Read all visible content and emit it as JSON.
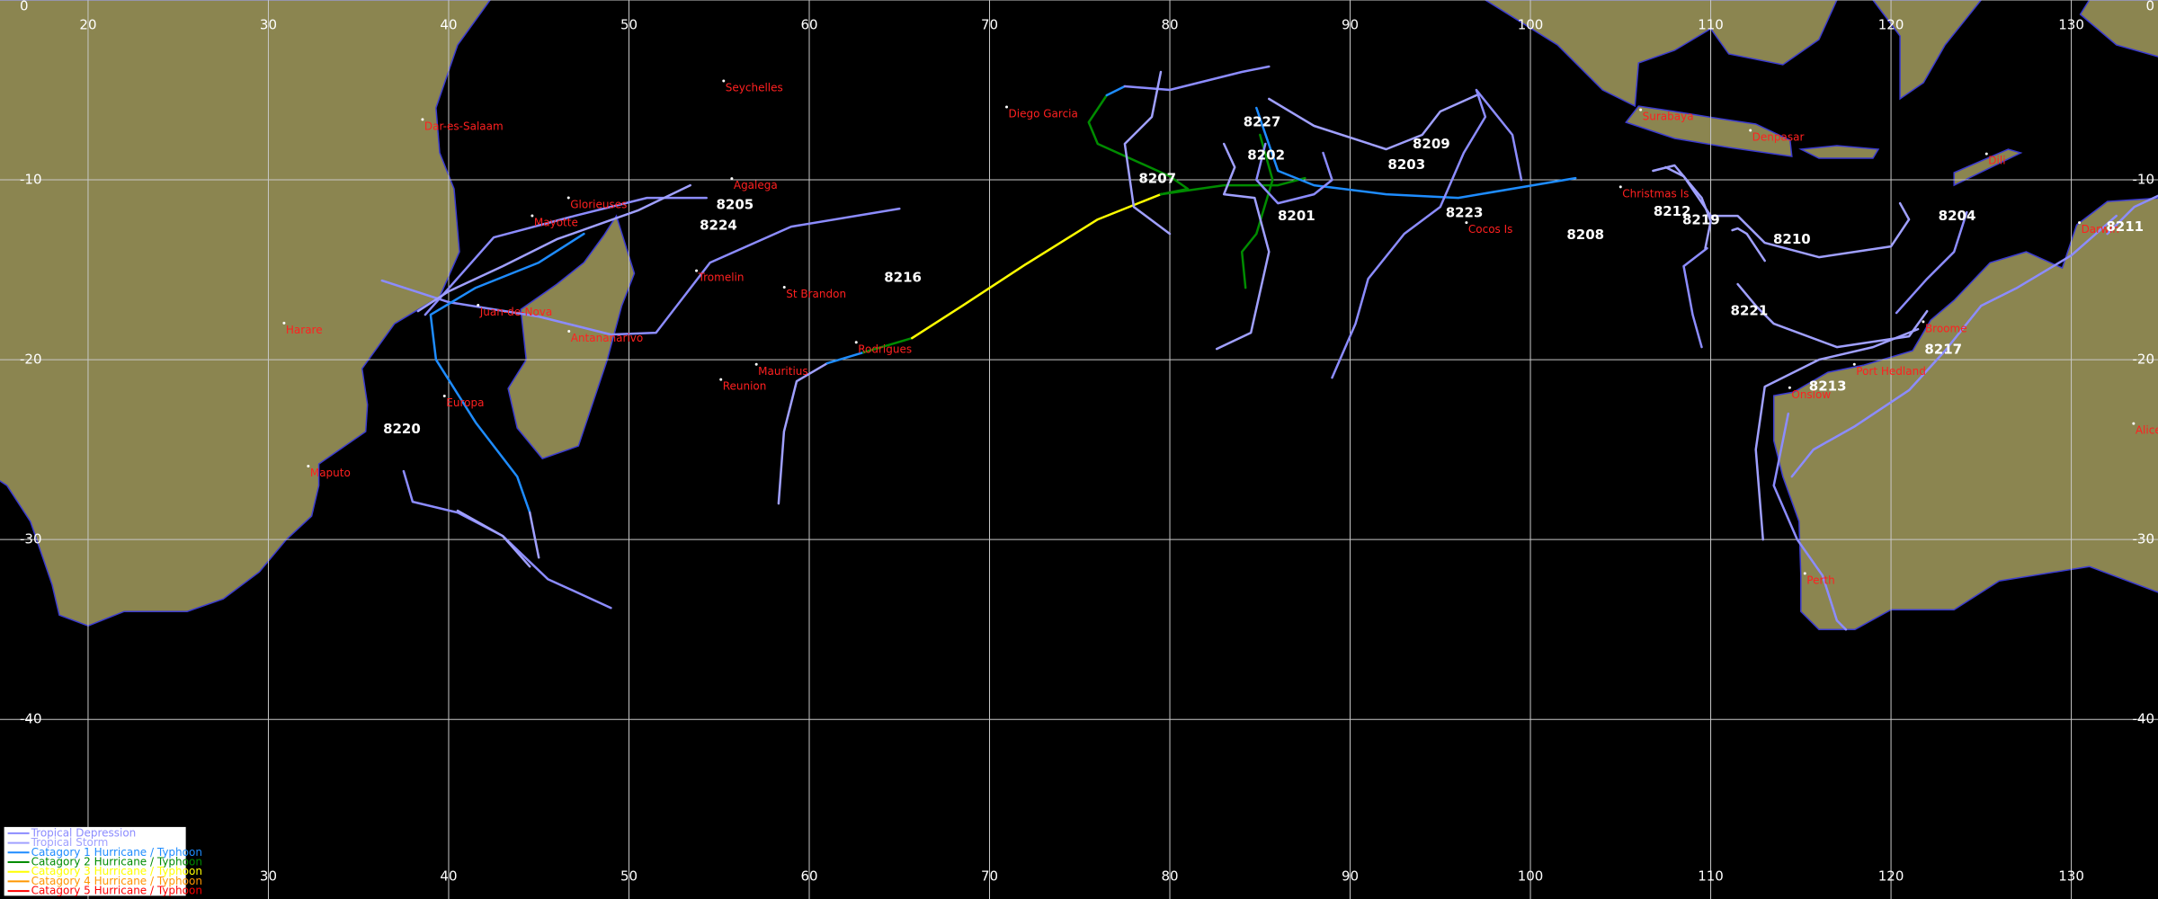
{
  "map": {
    "longitude_labels_top": [
      20,
      30,
      40,
      50,
      60,
      70,
      80,
      90,
      100,
      110,
      120,
      130
    ],
    "longitude_labels_bottom": [
      30,
      40,
      50,
      60,
      70,
      80,
      90,
      100,
      110,
      120,
      130
    ],
    "latitude_labels": [
      0,
      -10,
      -20,
      -30,
      -40
    ],
    "places": [
      "Dar-es-Salaam",
      "Seychelles",
      "Diego Garcia",
      "Agalega",
      "Glorieuses",
      "Mayotte",
      "Tromelin",
      "St Brandon",
      "Juan-de-Nova",
      "Antananarivo",
      "Harare",
      "Europa",
      "Maputo",
      "Mauritius",
      "Reunion",
      "Rodrigues",
      "Christmas Is",
      "Cocos Is",
      "Surabaya",
      "Denpasar",
      "Dili",
      "Darwin",
      "Broome",
      "Port Hedland",
      "Onslow",
      "Perth",
      "Alice"
    ],
    "storm_ids": [
      "8227",
      "8202",
      "8209",
      "8203",
      "8207",
      "8201",
      "8223",
      "8208",
      "8205",
      "8224",
      "8216",
      "8220",
      "8212",
      "8219",
      "8210",
      "8204",
      "8211",
      "8221",
      "8217",
      "8213"
    ],
    "legend": [
      {
        "label": "Tropical Depression",
        "color": "#8c8cff"
      },
      {
        "label": "Tropical Storm",
        "color": "#a0a0ff"
      },
      {
        "label": "Catagory 1 Hurricane / Typhoon",
        "color": "#1e8cff"
      },
      {
        "label": "Catagory 2 Hurricane / Typhoon",
        "color": "#008c00"
      },
      {
        "label": "Catagory 3 Hurricane / Typhoon",
        "color": "#ffff00"
      },
      {
        "label": "Catagory 4 Hurricane / Typhoon",
        "color": "#ff9600"
      },
      {
        "label": "Catagory 5 Hurricane / Typhoon",
        "color": "#ff0000"
      }
    ]
  }
}
